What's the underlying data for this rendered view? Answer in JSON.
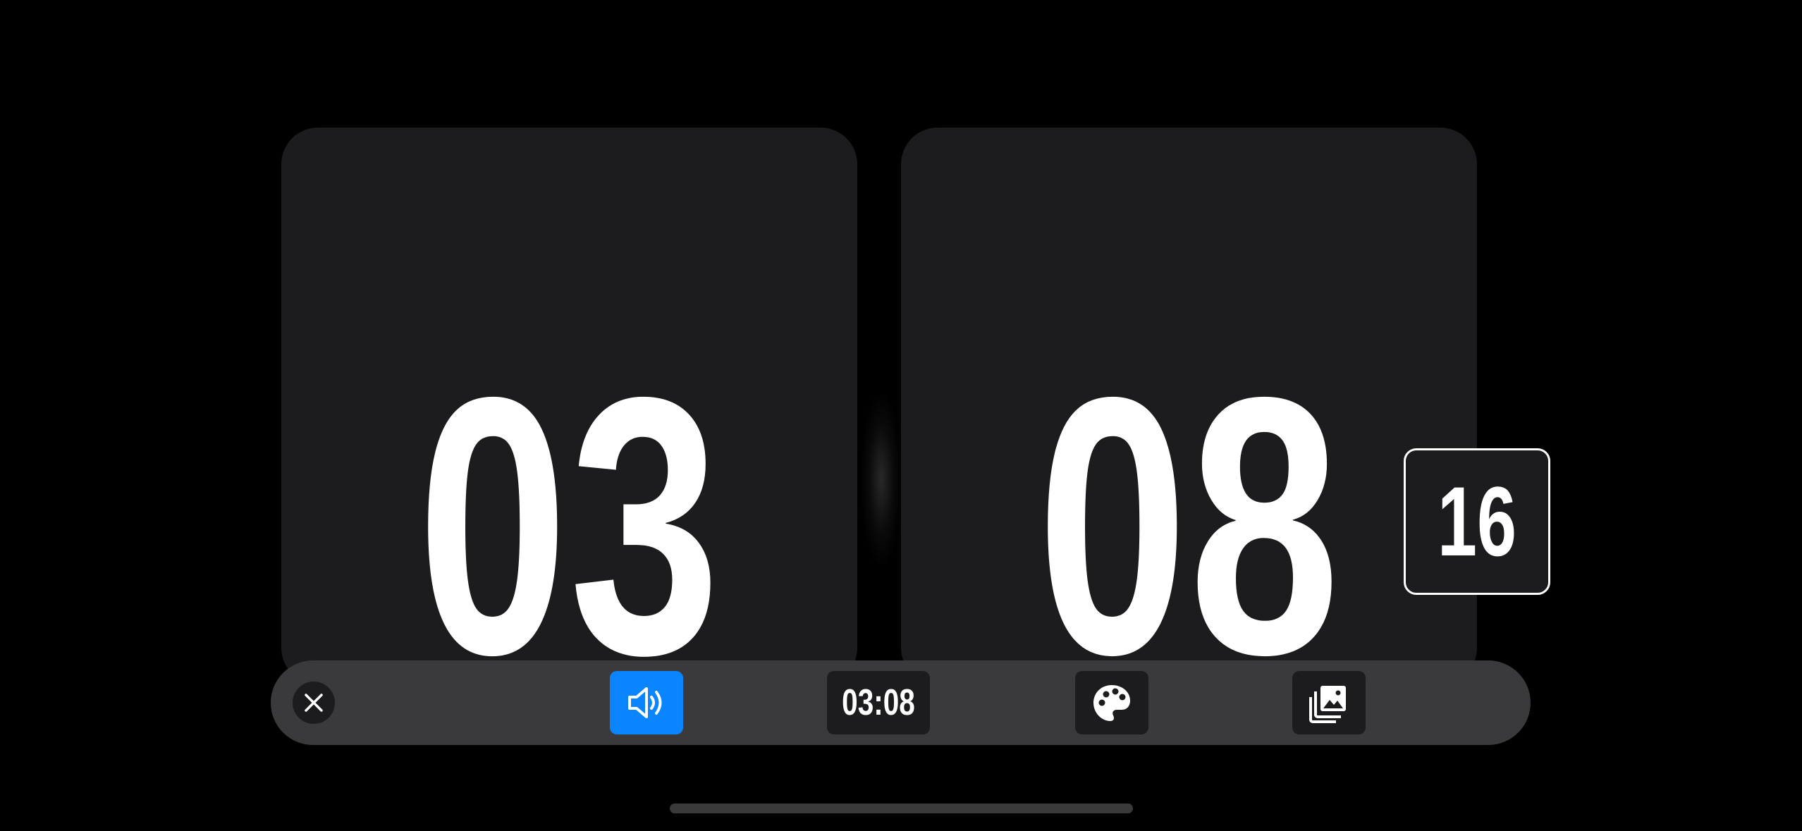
{
  "clock": {
    "hours": "03",
    "minutes": "08",
    "seconds": "16"
  },
  "toolbar": {
    "close_icon": "close-icon",
    "sound_icon": "speaker-wave-icon",
    "sound_active": true,
    "time_format_label": "03:08",
    "theme_icon": "palette-icon",
    "background_icon": "photo-library-icon"
  },
  "colors": {
    "background": "#000000",
    "card": "#1c1c1e",
    "toolbar": "#3a3a3c",
    "accent": "#0a84ff",
    "digits": "#ffffff"
  }
}
